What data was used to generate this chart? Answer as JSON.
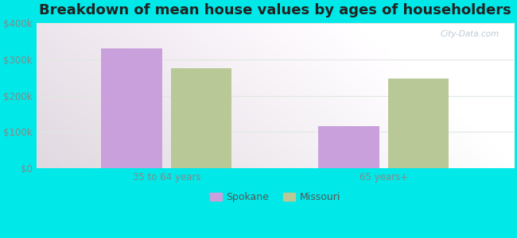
{
  "title": "Breakdown of mean house values by ages of householders",
  "categories": [
    "35 to 64 years",
    "65 years+"
  ],
  "spokane_values": [
    330000,
    115000
  ],
  "missouri_values": [
    275000,
    248000
  ],
  "spokane_color": "#c9a0dc",
  "missouri_color": "#b8c896",
  "background_color": "#00e8e8",
  "ylim": [
    0,
    400000
  ],
  "yticks": [
    0,
    100000,
    200000,
    300000,
    400000
  ],
  "ytick_labels": [
    "$0",
    "$100k",
    "$200k",
    "$300k",
    "$400k"
  ],
  "legend_labels": [
    "Spokane",
    "Missouri"
  ],
  "bar_width": 0.28,
  "title_fontsize": 13,
  "tick_color": "#888888",
  "watermark_text": "City-Data.com"
}
